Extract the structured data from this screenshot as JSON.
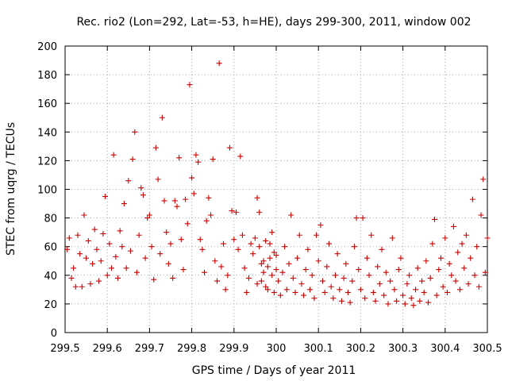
{
  "chart_data": {
    "type": "scatter",
    "title": "Rec. rio2 (Lon=292, Lat=-53, h=HE), days 299-300, 2011, window 002",
    "xlabel": "GPS time / Days of year 2011",
    "ylabel": "STEC from uqrg / TECUs",
    "xlim": [
      299.5,
      300.5
    ],
    "ylim": [
      0,
      200
    ],
    "xticks": [
      299.5,
      299.6,
      299.7,
      299.8,
      299.9,
      300,
      300.1,
      300.2,
      300.3,
      300.4,
      300.5
    ],
    "xtick_labels": [
      "299.5",
      "299.6",
      "299.7",
      "299.8",
      "299.9",
      "300",
      "300.1",
      "300.2",
      "300.3",
      "300.4",
      "300.5"
    ],
    "yticks": [
      0,
      20,
      40,
      60,
      80,
      100,
      120,
      140,
      160,
      180,
      200
    ],
    "ytick_labels": [
      "0",
      "20",
      "40",
      "60",
      "80",
      "100",
      "120",
      "140",
      "160",
      "180",
      "200"
    ],
    "grid": true,
    "marker": "plus",
    "color": "#cc0000",
    "series": [
      {
        "name": "STEC",
        "points": [
          [
            299.505,
            58
          ],
          [
            299.51,
            66
          ],
          [
            299.515,
            38
          ],
          [
            299.52,
            45
          ],
          [
            299.525,
            32
          ],
          [
            299.53,
            68
          ],
          [
            299.535,
            55
          ],
          [
            299.54,
            32
          ],
          [
            299.545,
            82
          ],
          [
            299.55,
            52
          ],
          [
            299.555,
            64
          ],
          [
            299.56,
            34
          ],
          [
            299.565,
            48
          ],
          [
            299.57,
            72
          ],
          [
            299.575,
            58
          ],
          [
            299.58,
            36
          ],
          [
            299.585,
            50
          ],
          [
            299.59,
            69
          ],
          [
            299.595,
            95
          ],
          [
            299.6,
            40
          ],
          [
            299.605,
            62
          ],
          [
            299.61,
            45
          ],
          [
            299.615,
            124
          ],
          [
            299.62,
            53
          ],
          [
            299.625,
            38
          ],
          [
            299.63,
            71
          ],
          [
            299.635,
            60
          ],
          [
            299.64,
            90
          ],
          [
            299.645,
            45
          ],
          [
            299.65,
            106
          ],
          [
            299.655,
            57
          ],
          [
            299.66,
            121
          ],
          [
            299.665,
            140
          ],
          [
            299.67,
            42
          ],
          [
            299.675,
            68
          ],
          [
            299.68,
            101
          ],
          [
            299.685,
            96
          ],
          [
            299.69,
            52
          ],
          [
            299.695,
            80
          ],
          [
            299.7,
            82
          ],
          [
            299.705,
            60
          ],
          [
            299.71,
            37
          ],
          [
            299.715,
            129
          ],
          [
            299.72,
            107
          ],
          [
            299.725,
            55
          ],
          [
            299.73,
            150
          ],
          [
            299.735,
            92
          ],
          [
            299.74,
            70
          ],
          [
            299.745,
            48
          ],
          [
            299.75,
            62
          ],
          [
            299.755,
            38
          ],
          [
            299.76,
            92
          ],
          [
            299.765,
            88
          ],
          [
            299.77,
            122
          ],
          [
            299.775,
            65
          ],
          [
            299.78,
            44
          ],
          [
            299.785,
            93
          ],
          [
            299.79,
            76
          ],
          [
            299.795,
            173
          ],
          [
            299.8,
            108
          ],
          [
            299.805,
            97
          ],
          [
            299.81,
            124
          ],
          [
            299.815,
            119
          ],
          [
            299.82,
            65
          ],
          [
            299.825,
            58
          ],
          [
            299.83,
            42
          ],
          [
            299.835,
            78
          ],
          [
            299.84,
            94
          ],
          [
            299.845,
            82
          ],
          [
            299.85,
            121
          ],
          [
            299.855,
            50
          ],
          [
            299.86,
            36
          ],
          [
            299.865,
            188
          ],
          [
            299.87,
            46
          ],
          [
            299.875,
            62
          ],
          [
            299.88,
            30
          ],
          [
            299.885,
            40
          ],
          [
            299.89,
            129
          ],
          [
            299.895,
            85
          ],
          [
            299.9,
            65
          ],
          [
            299.905,
            84
          ],
          [
            299.91,
            58
          ],
          [
            299.915,
            123
          ],
          [
            299.92,
            68
          ],
          [
            299.925,
            45
          ],
          [
            299.93,
            28
          ],
          [
            299.935,
            38
          ],
          [
            299.94,
            62
          ],
          [
            299.945,
            55
          ],
          [
            299.95,
            66
          ],
          [
            299.955,
            34
          ],
          [
            299.96,
            84
          ],
          [
            299.965,
            48
          ],
          [
            299.97,
            42
          ],
          [
            299.975,
            64
          ],
          [
            299.98,
            30
          ],
          [
            299.985,
            52
          ],
          [
            299.99,
            70
          ],
          [
            299.995,
            56
          ],
          [
            300,
            44
          ],
          [
            299.955,
            94
          ],
          [
            299.96,
            60
          ],
          [
            299.965,
            36
          ],
          [
            299.97,
            50
          ],
          [
            299.975,
            32
          ],
          [
            299.98,
            46
          ],
          [
            299.985,
            62
          ],
          [
            299.99,
            40
          ],
          [
            299.995,
            28
          ],
          [
            300.0,
            54
          ],
          [
            300.005,
            36
          ],
          [
            300.01,
            26
          ],
          [
            300.015,
            42
          ],
          [
            300.02,
            60
          ],
          [
            300.025,
            30
          ],
          [
            300.03,
            48
          ],
          [
            300.035,
            82
          ],
          [
            300.04,
            38
          ],
          [
            300.045,
            28
          ],
          [
            300.05,
            52
          ],
          [
            300.055,
            68
          ],
          [
            300.06,
            34
          ],
          [
            300.065,
            26
          ],
          [
            300.07,
            44
          ],
          [
            300.075,
            58
          ],
          [
            300.08,
            30
          ],
          [
            300.085,
            40
          ],
          [
            300.09,
            24
          ],
          [
            300.095,
            68
          ],
          [
            300.1,
            50
          ],
          [
            300.105,
            75
          ],
          [
            300.11,
            36
          ],
          [
            300.115,
            28
          ],
          [
            300.12,
            46
          ],
          [
            300.125,
            62
          ],
          [
            300.13,
            32
          ],
          [
            300.135,
            24
          ],
          [
            300.14,
            40
          ],
          [
            300.145,
            55
          ],
          [
            300.15,
            30
          ],
          [
            300.155,
            22
          ],
          [
            300.16,
            38
          ],
          [
            300.165,
            48
          ],
          [
            300.17,
            28
          ],
          [
            300.175,
            21
          ],
          [
            300.18,
            36
          ],
          [
            300.185,
            60
          ],
          [
            300.19,
            80
          ],
          [
            300.195,
            44
          ],
          [
            300.2,
            30
          ],
          [
            300.205,
            80
          ],
          [
            300.21,
            24
          ],
          [
            300.215,
            52
          ],
          [
            300.22,
            40
          ],
          [
            300.225,
            68
          ],
          [
            300.23,
            28
          ],
          [
            300.235,
            22
          ],
          [
            300.24,
            46
          ],
          [
            300.245,
            34
          ],
          [
            300.25,
            58
          ],
          [
            300.255,
            26
          ],
          [
            300.26,
            42
          ],
          [
            300.265,
            20
          ],
          [
            300.27,
            36
          ],
          [
            300.275,
            66
          ],
          [
            300.28,
            30
          ],
          [
            300.285,
            22
          ],
          [
            300.29,
            44
          ],
          [
            300.295,
            52
          ],
          [
            300.3,
            26
          ],
          [
            300.305,
            20
          ],
          [
            300.31,
            34
          ],
          [
            300.315,
            40
          ],
          [
            300.32,
            24
          ],
          [
            300.325,
            19
          ],
          [
            300.33,
            30
          ],
          [
            300.335,
            45
          ],
          [
            300.34,
            22
          ],
          [
            300.345,
            36
          ],
          [
            300.35,
            28
          ],
          [
            300.355,
            50
          ],
          [
            300.36,
            21
          ],
          [
            300.365,
            38
          ],
          [
            300.37,
            62
          ],
          [
            300.375,
            79
          ],
          [
            300.38,
            26
          ],
          [
            300.385,
            44
          ],
          [
            300.39,
            52
          ],
          [
            300.395,
            32
          ],
          [
            300.4,
            66
          ],
          [
            300.405,
            28
          ],
          [
            300.41,
            48
          ],
          [
            300.415,
            40
          ],
          [
            300.42,
            74
          ],
          [
            300.425,
            36
          ],
          [
            300.43,
            56
          ],
          [
            300.435,
            30
          ],
          [
            300.44,
            62
          ],
          [
            300.445,
            45
          ],
          [
            300.45,
            68
          ],
          [
            300.455,
            34
          ],
          [
            300.46,
            52
          ],
          [
            300.465,
            93
          ],
          [
            300.47,
            40
          ],
          [
            300.475,
            60
          ],
          [
            300.48,
            32
          ],
          [
            300.485,
            82
          ],
          [
            300.49,
            107
          ],
          [
            300.495,
            42
          ],
          [
            300.5,
            66
          ]
        ]
      }
    ]
  }
}
